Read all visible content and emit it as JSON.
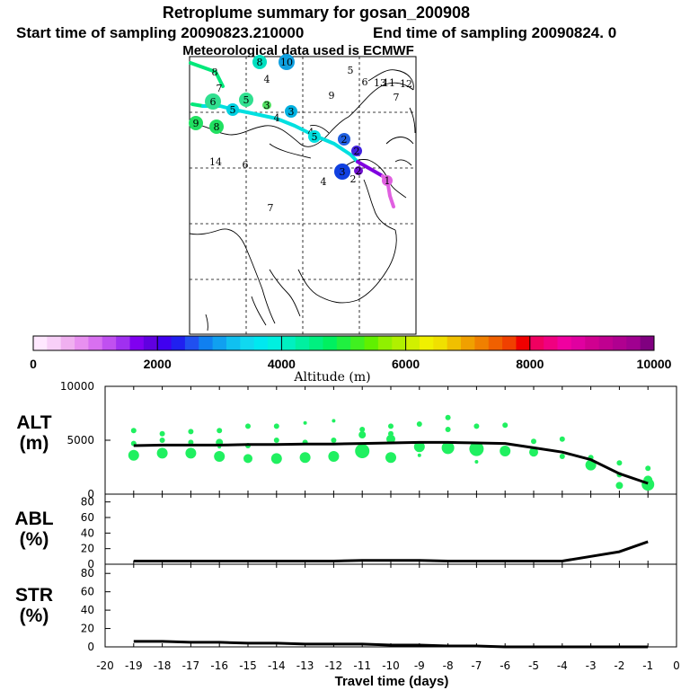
{
  "header": {
    "title": "Retroplume summary for gosan_200908",
    "line2_left": "Start time of sampling 20090823.210000",
    "line2_right": "End time of sampling 20090824.     0",
    "line3": "Meteorological data used is ECMWF"
  },
  "colors": {
    "trajectory_cyan": "#00e0e0",
    "trajectory_green": "#00e87a",
    "trajectory_purple": "#8000e0",
    "trajectory_magenta": "#e060e0",
    "scatter_green": "#20f060",
    "line": "#000000"
  },
  "map": {
    "day_markers": [
      {
        "label": "8",
        "color": "#00e0c0"
      },
      {
        "label": "10",
        "color": "#10a0e0"
      },
      {
        "label": "5",
        "color": "#30e090"
      },
      {
        "label": "4",
        "color": "#30e070"
      },
      {
        "label": "9",
        "color": "#10c0e0"
      },
      {
        "label": "6",
        "color": "#10c0e0"
      },
      {
        "label": "13",
        "color": "#10c0e0"
      },
      {
        "label": "11",
        "color": "#10c0e0"
      },
      {
        "label": "12",
        "color": "#10c0e0"
      },
      {
        "label": "8",
        "color": "#00e0d0"
      },
      {
        "label": "7",
        "color": "#00e0d0"
      },
      {
        "label": "7",
        "color": "#00e070"
      },
      {
        "label": "6",
        "color": "#30e090"
      },
      {
        "label": "5",
        "color": "#30e090"
      },
      {
        "label": "3",
        "color": "#50e060"
      },
      {
        "label": "9",
        "color": "#20e060"
      },
      {
        "label": "8",
        "color": "#20e060"
      },
      {
        "label": "5",
        "color": "#00d0e0"
      },
      {
        "label": "3",
        "color": "#00b0e0"
      },
      {
        "label": "4",
        "color": "#00d8e0"
      },
      {
        "label": "2",
        "color": "#2060e0"
      },
      {
        "label": "4",
        "color": "#00e0e0"
      },
      {
        "label": "5",
        "color": "#00e0e0"
      },
      {
        "label": "2",
        "color": "#4020e0"
      },
      {
        "label": "3",
        "color": "#1040e0"
      },
      {
        "label": "2",
        "color": "#7010d0"
      },
      {
        "label": "1",
        "color": "#e060e0"
      },
      {
        "label": "2",
        "color": "#e070e0"
      },
      {
        "label": "14",
        "color": "#00d8e0"
      },
      {
        "label": "6",
        "color": "#00d8e0"
      },
      {
        "label": "4",
        "color": "#00e080"
      },
      {
        "label": "7",
        "color": "#00e0e0"
      }
    ]
  },
  "colorbar": {
    "label": "Altitude (m)",
    "ticks": [
      "0",
      "2000",
      "4000",
      "6000",
      "8000",
      "10000"
    ],
    "range": [
      0,
      10000
    ],
    "segments": [
      "#ffe8ff",
      "#f8d0f8",
      "#f0b0f0",
      "#e890f0",
      "#d870f0",
      "#c050f0",
      "#a030f0",
      "#8000f0",
      "#6000e0",
      "#4000f0",
      "#2020f0",
      "#2050f0",
      "#1080f0",
      "#10a0f0",
      "#10c0f0",
      "#10d8f0",
      "#00e8f0",
      "#00f0e0",
      "#00f0c0",
      "#00f0a0",
      "#00f080",
      "#00f060",
      "#20f040",
      "#40f020",
      "#60f000",
      "#90f000",
      "#b0f000",
      "#d0f000",
      "#f0f000",
      "#f0e000",
      "#f0c000",
      "#f0a000",
      "#f08000",
      "#f06000",
      "#f04000",
      "#f00000",
      "#f00060",
      "#f00080",
      "#f000a0",
      "#e000a0",
      "#d00090",
      "#c00090",
      "#b00090",
      "#a00090",
      "#800080"
    ]
  },
  "chart_data": [
    {
      "type": "line",
      "panel_label": [
        "ALT",
        "(m)"
      ],
      "x": [
        -1,
        -2,
        -3,
        -4,
        -5,
        -6,
        -7,
        -8,
        -9,
        -10,
        -11,
        -12,
        -13,
        -14,
        -15,
        -16,
        -17,
        -18,
        -19
      ],
      "y": [
        1000,
        1900,
        3200,
        3900,
        4300,
        4700,
        4750,
        4800,
        4800,
        4750,
        4700,
        4650,
        4650,
        4600,
        4600,
        4550,
        4550,
        4550,
        4500
      ],
      "ylim": [
        0,
        10000
      ],
      "yticks": [
        "0",
        "5000",
        "10000"
      ],
      "scatter": {
        "x": [
          -1,
          -1,
          -1,
          -2,
          -2,
          -2,
          -3,
          -3,
          -4,
          -4,
          -5,
          -5,
          -6,
          -6,
          -7,
          -7,
          -7,
          -8,
          -8,
          -8,
          -9,
          -9,
          -9,
          -10,
          -10,
          -10,
          -10,
          -11,
          -11,
          -11,
          -11,
          -12,
          -12,
          -12,
          -13,
          -13,
          -13,
          -14,
          -14,
          -14,
          -15,
          -15,
          -15,
          -16,
          -16,
          -16,
          -16,
          -17,
          -17,
          -17,
          -18,
          -18,
          -18,
          -19,
          -19,
          -19
        ],
        "y": [
          900,
          1300,
          2400,
          800,
          1800,
          2900,
          2700,
          3400,
          3500,
          5100,
          3900,
          4900,
          4000,
          6400,
          4200,
          6300,
          3000,
          4300,
          6000,
          7100,
          4400,
          6500,
          3600,
          3400,
          5100,
          5600,
          6300,
          4000,
          5500,
          6000,
          3500,
          3500,
          5000,
          6800,
          3400,
          4800,
          6600,
          3300,
          5000,
          6300,
          3300,
          4500,
          6300,
          3500,
          4800,
          5900,
          4400,
          3800,
          4800,
          5800,
          3800,
          5000,
          5600,
          3600,
          4700,
          5900
        ],
        "s": [
          7,
          5,
          3,
          4,
          3,
          3,
          6,
          3,
          3,
          3,
          5,
          3,
          6,
          3,
          8,
          3,
          2,
          7,
          3,
          3,
          6,
          3,
          2,
          6,
          5,
          3,
          3,
          8,
          4,
          3,
          2,
          6,
          3,
          2,
          6,
          3,
          2,
          6,
          3,
          3,
          5,
          3,
          3,
          6,
          4,
          3,
          2,
          6,
          3,
          3,
          6,
          3,
          3,
          6,
          3,
          3
        ]
      }
    },
    {
      "type": "line",
      "panel_label": [
        "ABL",
        "(%)"
      ],
      "x": [
        -1,
        -2,
        -3,
        -4,
        -5,
        -6,
        -7,
        -8,
        -9,
        -10,
        -11,
        -12,
        -13,
        -14,
        -15,
        -16,
        -17,
        -18,
        -19
      ],
      "y": [
        29,
        16,
        10,
        4,
        4,
        4,
        4,
        4,
        5,
        5,
        5,
        4,
        4,
        4,
        4,
        4,
        4,
        4,
        4
      ],
      "ylim": [
        0,
        90
      ],
      "yticks": [
        "0",
        "20",
        "40",
        "60",
        "80"
      ]
    },
    {
      "type": "line",
      "panel_label": [
        "STR",
        "(%)"
      ],
      "x": [
        -1,
        -2,
        -3,
        -4,
        -5,
        -6,
        -7,
        -8,
        -9,
        -10,
        -11,
        -12,
        -13,
        -14,
        -15,
        -16,
        -17,
        -18,
        -19
      ],
      "y": [
        0,
        0,
        0,
        0,
        0,
        0,
        1,
        1,
        2,
        2,
        3,
        3,
        3,
        4,
        4,
        5,
        5,
        6,
        6
      ],
      "ylim": [
        0,
        90
      ],
      "yticks": [
        "0",
        "20",
        "40",
        "60",
        "80"
      ]
    }
  ],
  "xaxis": {
    "label": "Travel time (days)",
    "range": [
      -20,
      0
    ],
    "ticks": [
      "-20",
      "-19",
      "-18",
      "-17",
      "-16",
      "-15",
      "-14",
      "-13",
      "-12",
      "-11",
      "-10",
      "-9",
      "-8",
      "-7",
      "-6",
      "-5",
      "-4",
      "-3",
      "-2",
      "-1",
      "0"
    ]
  }
}
